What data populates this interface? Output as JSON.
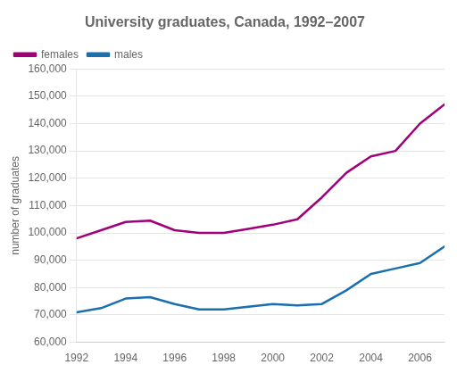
{
  "chart_data": {
    "type": "line",
    "title": "University graduates, Canada, 1992–2007",
    "y_label": "number of graduates",
    "x": [
      1992,
      1993,
      1994,
      1995,
      1996,
      1997,
      1998,
      1999,
      2000,
      2001,
      2002,
      2003,
      2004,
      2005,
      2006,
      2007
    ],
    "series": [
      {
        "name": "females",
        "color": "#a0007a",
        "values": [
          98000,
          101000,
          104000,
          104500,
          101000,
          100000,
          100000,
          101500,
          103000,
          105000,
          113000,
          122000,
          128000,
          130000,
          140000,
          147000
        ]
      },
      {
        "name": "males",
        "color": "#1a6faf",
        "values": [
          71000,
          72500,
          76000,
          76500,
          74000,
          72000,
          72000,
          73000,
          74000,
          73500,
          74000,
          79000,
          85000,
          87000,
          89000,
          95000
        ]
      }
    ],
    "xlim": [
      1992,
      2007
    ],
    "xticks": [
      1992,
      1994,
      1996,
      1998,
      2000,
      2002,
      2004,
      2006
    ],
    "ylim": [
      60000,
      160000
    ],
    "yticks": [
      {
        "value": 60000,
        "label": "60,000"
      },
      {
        "value": 70000,
        "label": "70,000"
      },
      {
        "value": 80000,
        "label": "80,000"
      },
      {
        "value": 90000,
        "label": "90,000"
      },
      {
        "value": 100000,
        "label": "100,000"
      },
      {
        "value": 110000,
        "label": "110,000"
      },
      {
        "value": 120000,
        "label": "120,000"
      },
      {
        "value": 130000,
        "label": "130,000"
      },
      {
        "value": 140000,
        "label": "140,000"
      },
      {
        "value": 150000,
        "label": "150,000"
      },
      {
        "value": 160000,
        "label": "160,000"
      }
    ],
    "grid": "y",
    "legend": "upper left"
  }
}
